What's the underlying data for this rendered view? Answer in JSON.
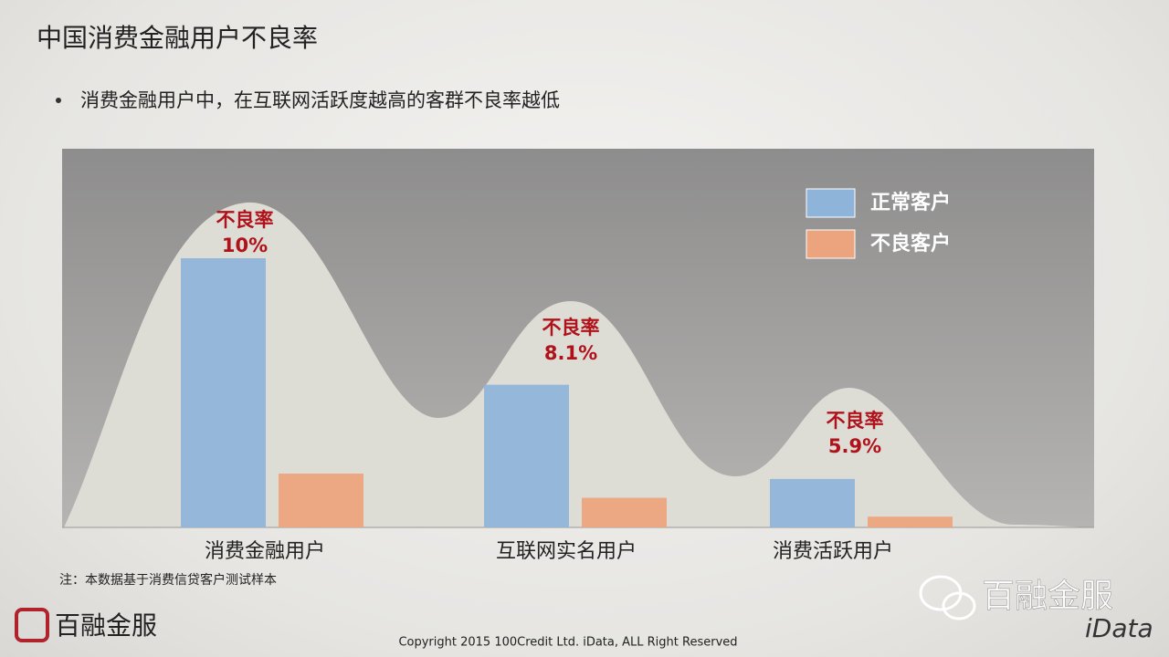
{
  "header": {
    "title": "中国消费金融用户不良率",
    "bullet": "消费金融用户中，在互联网活跃度越高的客群不良率越低"
  },
  "chart_data": {
    "type": "bar",
    "categories": [
      "消费金融用户",
      "互联网实名用户",
      "消费活跃用户"
    ],
    "series": [
      {
        "name": "正常客户",
        "color": "#8fb4da",
        "values": [
          100,
          53,
          18
        ]
      },
      {
        "name": "不良客户",
        "color": "#eca47e",
        "values": [
          20,
          11,
          4
        ]
      }
    ],
    "annotations": [
      [
        "不良率",
        "10%"
      ],
      [
        "不良率",
        "8.1%"
      ],
      [
        "不良率",
        "5.9%"
      ]
    ],
    "note": "注：本数据基于消费信贷客户测试样本"
  },
  "footer": {
    "logo": "百融金服",
    "wechat": "百融金服",
    "brand": "iData",
    "copyright": "Copyright 2015 100Credit Ltd. iData, ALL Right Reserved"
  }
}
